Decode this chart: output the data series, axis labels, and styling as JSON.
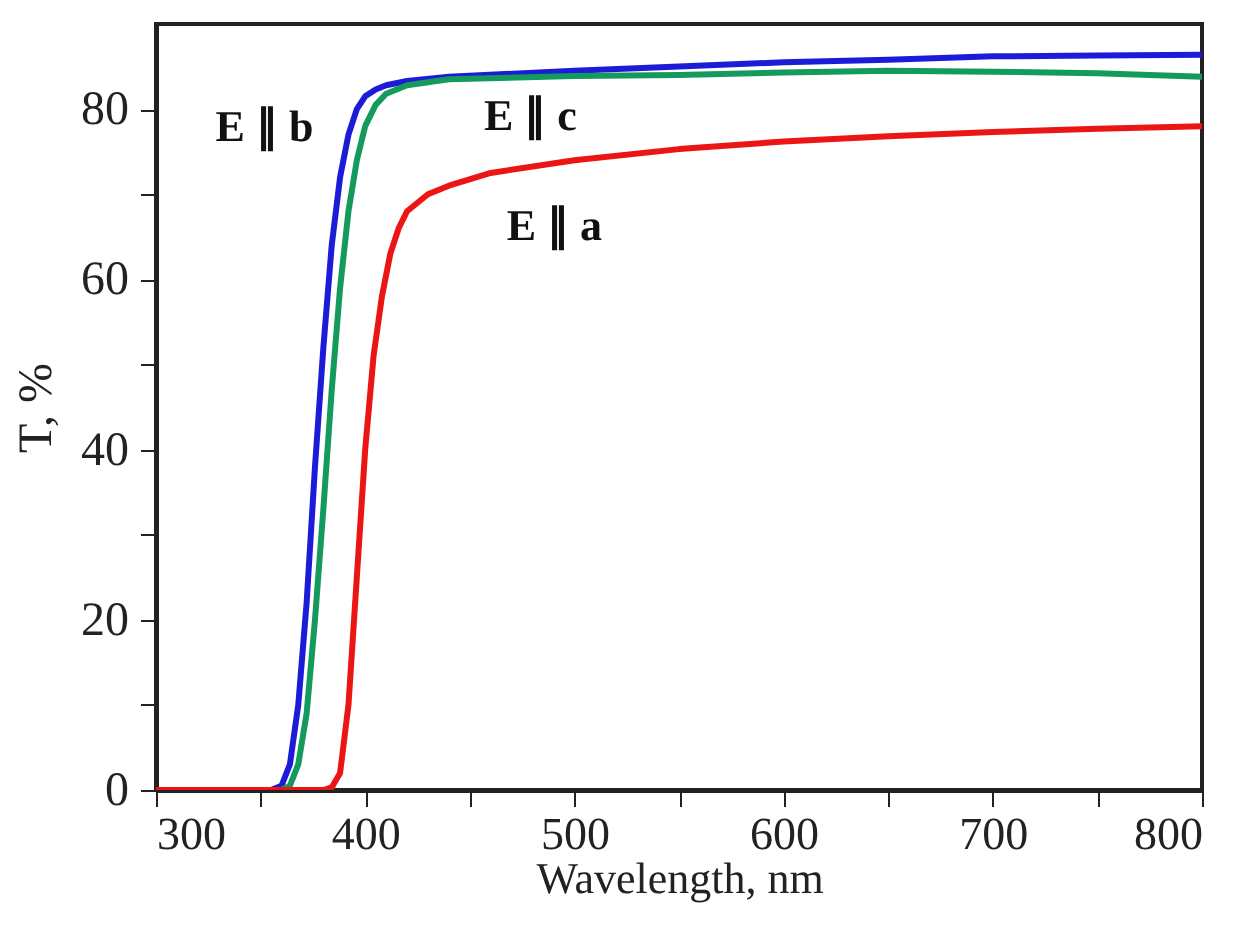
{
  "chart_data": {
    "type": "line",
    "xlabel": "Wavelength, nm",
    "ylabel": "T, %",
    "xlim": [
      300,
      800
    ],
    "ylim": [
      0,
      90
    ],
    "xticks": [
      300,
      {
        "value": 350,
        "label": null
      },
      400,
      {
        "value": 450,
        "label": null
      },
      500,
      {
        "value": 550,
        "label": null
      },
      600,
      {
        "value": 650,
        "label": null
      },
      700,
      {
        "value": 750,
        "label": null
      },
      800
    ],
    "yticks": [
      0,
      {
        "value": 10,
        "label": null
      },
      20,
      {
        "value": 30,
        "label": null
      },
      40,
      {
        "value": 50,
        "label": null
      },
      60,
      {
        "value": 70,
        "label": null
      },
      80
    ],
    "grid": false,
    "line_style": "solid",
    "series": [
      {
        "name": "E ∥ b",
        "color": "#1c1cd8",
        "x": [
          300,
          355,
          360,
          364,
          368,
          372,
          376,
          380,
          384,
          388,
          392,
          396,
          400,
          405,
          410,
          420,
          440,
          500,
          550,
          600,
          650,
          700,
          750,
          800
        ],
        "values": [
          0,
          0,
          0.5,
          3,
          10,
          22,
          38,
          52,
          64,
          72,
          77,
          80,
          81.5,
          82.3,
          82.8,
          83.3,
          83.8,
          84.5,
          85,
          85.5,
          85.8,
          86.2,
          86.3,
          86.4
        ]
      },
      {
        "name": "E ∥ c",
        "color": "#139a5c",
        "x": [
          300,
          360,
          364,
          368,
          372,
          376,
          380,
          384,
          388,
          392,
          396,
          400,
          405,
          410,
          420,
          440,
          500,
          550,
          600,
          650,
          700,
          750,
          800
        ],
        "values": [
          0,
          0,
          0.5,
          3,
          9,
          20,
          33,
          47,
          59,
          68,
          74,
          78,
          80.5,
          81.8,
          82.8,
          83.5,
          83.9,
          84,
          84.3,
          84.5,
          84.4,
          84.2,
          83.8
        ]
      },
      {
        "name": "E ∥ a",
        "color": "#ec1515",
        "x": [
          300,
          380,
          384,
          388,
          392,
          396,
          400,
          404,
          408,
          412,
          416,
          420,
          430,
          440,
          460,
          500,
          550,
          600,
          650,
          700,
          750,
          800
        ],
        "values": [
          0,
          0,
          0.3,
          2,
          10,
          25,
          40,
          51,
          58,
          63,
          66,
          68,
          70,
          71,
          72.5,
          74,
          75.3,
          76.2,
          76.8,
          77.3,
          77.7,
          78
        ]
      }
    ]
  }
}
